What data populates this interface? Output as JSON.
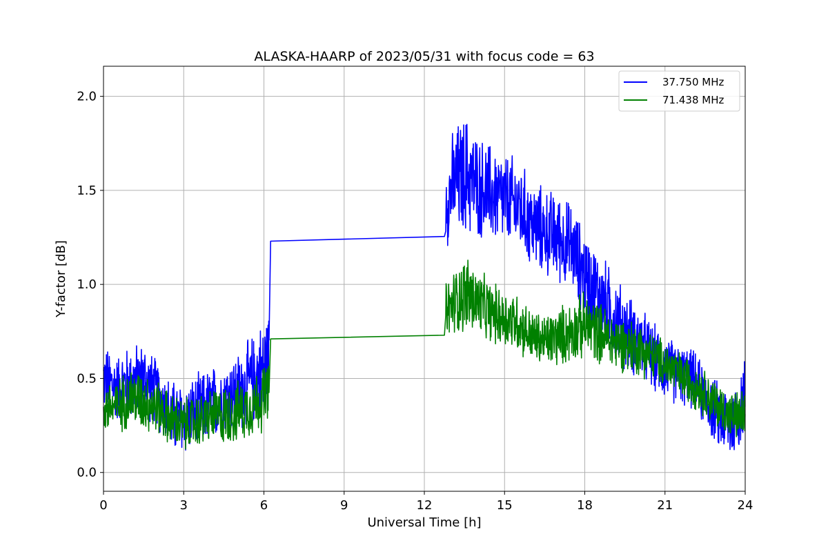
{
  "chart_data": {
    "type": "line",
    "title": "ALASKA-HAARP of 2023/05/31 with focus code = 63",
    "xlabel": "Universal Time [h]",
    "ylabel": "Y-factor [dB]",
    "xlim": [
      0,
      24
    ],
    "ylim": [
      -0.1,
      2.16
    ],
    "xticks": [
      0,
      3,
      6,
      9,
      12,
      15,
      18,
      21,
      24
    ],
    "xtick_labels": [
      "0",
      "3",
      "6",
      "9",
      "12",
      "15",
      "18",
      "21",
      "24"
    ],
    "yticks": [
      0.0,
      0.5,
      1.0,
      1.5,
      2.0
    ],
    "ytick_labels": [
      "0.0",
      "0.5",
      "1.0",
      "1.5",
      "2.0"
    ],
    "grid": true,
    "legend_position": "top-right",
    "series": [
      {
        "name": "37.750 MHz",
        "color": "#0000ff",
        "x": [
          0,
          0.5,
          1,
          1.5,
          2,
          2.5,
          3,
          3.5,
          4,
          4.5,
          5,
          5.5,
          6,
          6.2,
          6.25,
          12.75,
          12.8,
          13.2,
          13.6,
          14,
          14.5,
          15,
          15.5,
          16,
          16.5,
          17,
          17.5,
          18,
          18.5,
          19,
          19.5,
          20,
          20.5,
          21,
          21.5,
          22,
          22.5,
          23,
          23.5,
          24
        ],
        "mean": [
          0.5,
          0.45,
          0.48,
          0.5,
          0.42,
          0.3,
          0.28,
          0.32,
          0.36,
          0.4,
          0.42,
          0.48,
          0.55,
          0.62,
          1.23,
          1.255,
          1.45,
          1.55,
          1.58,
          1.52,
          1.48,
          1.45,
          1.42,
          1.32,
          1.28,
          1.25,
          1.2,
          1.05,
          0.95,
          0.85,
          0.75,
          0.7,
          0.62,
          0.56,
          0.52,
          0.5,
          0.4,
          0.3,
          0.25,
          0.4
        ],
        "amplitude": [
          0.2,
          0.2,
          0.22,
          0.22,
          0.2,
          0.22,
          0.22,
          0.22,
          0.22,
          0.22,
          0.24,
          0.26,
          0.3,
          0.3,
          0,
          0,
          0.28,
          0.34,
          0.36,
          0.3,
          0.3,
          0.28,
          0.28,
          0.26,
          0.26,
          0.26,
          0.26,
          0.26,
          0.26,
          0.26,
          0.24,
          0.22,
          0.2,
          0.2,
          0.18,
          0.18,
          0.18,
          0.2,
          0.22,
          0.26
        ]
      },
      {
        "name": "71.438 MHz",
        "color": "#008000",
        "x": [
          0,
          0.5,
          1,
          1.5,
          2,
          2.5,
          3,
          3.5,
          4,
          4.5,
          5,
          5.5,
          6,
          6.2,
          6.25,
          12.75,
          12.8,
          13.2,
          13.6,
          14,
          14.5,
          15,
          15.5,
          16,
          16.5,
          17,
          17.5,
          18,
          18.5,
          19,
          19.5,
          20,
          20.5,
          21,
          21.5,
          22,
          22.5,
          23,
          23.5,
          24
        ],
        "mean": [
          0.35,
          0.35,
          0.4,
          0.38,
          0.35,
          0.28,
          0.25,
          0.27,
          0.3,
          0.3,
          0.32,
          0.35,
          0.4,
          0.45,
          0.71,
          0.73,
          0.85,
          0.92,
          0.95,
          0.9,
          0.85,
          0.82,
          0.8,
          0.72,
          0.7,
          0.72,
          0.75,
          0.78,
          0.75,
          0.7,
          0.68,
          0.66,
          0.62,
          0.58,
          0.52,
          0.48,
          0.42,
          0.35,
          0.3,
          0.3
        ],
        "amplitude": [
          0.16,
          0.16,
          0.18,
          0.18,
          0.16,
          0.16,
          0.16,
          0.16,
          0.16,
          0.18,
          0.18,
          0.18,
          0.2,
          0.2,
          0,
          0,
          0.18,
          0.2,
          0.24,
          0.2,
          0.18,
          0.18,
          0.18,
          0.16,
          0.16,
          0.18,
          0.18,
          0.2,
          0.18,
          0.18,
          0.16,
          0.16,
          0.14,
          0.14,
          0.14,
          0.14,
          0.14,
          0.14,
          0.14,
          0.16
        ]
      }
    ]
  }
}
